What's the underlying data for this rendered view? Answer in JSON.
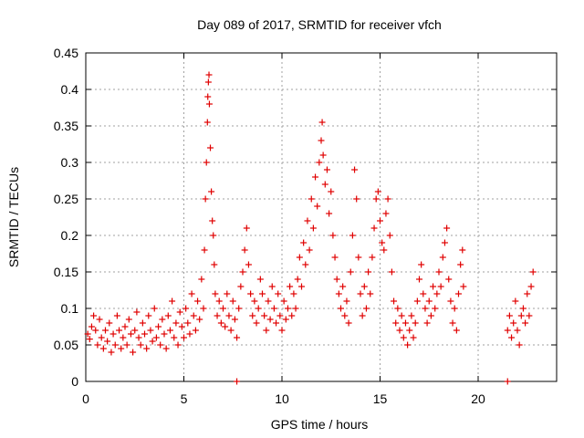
{
  "chart_data": {
    "type": "scatter",
    "title": "Day 089 of 2017, SRMTID for receiver vfch",
    "xlabel": "GPS time / hours",
    "ylabel": "SRMTID / TECUs",
    "xlim": [
      0,
      24
    ],
    "ylim": [
      0,
      0.45
    ],
    "xticks": [
      0,
      5,
      10,
      15,
      20
    ],
    "yticks": [
      0,
      0.05,
      0.1,
      0.15,
      0.2,
      0.25,
      0.3,
      0.35,
      0.4,
      0.45
    ],
    "xtick_labels": [
      "0",
      "5",
      "10",
      "15",
      "20"
    ],
    "ytick_labels": [
      "0",
      "0.05",
      "0.1",
      "0.15",
      "0.2",
      "0.25",
      "0.3",
      "0.35",
      "0.4",
      "0.45"
    ],
    "grid": true,
    "marker_color": "#e00000",
    "series": [
      {
        "name": "SRMTID",
        "points": [
          [
            0.1,
            0.065
          ],
          [
            0.2,
            0.058
          ],
          [
            0.3,
            0.075
          ],
          [
            0.4,
            0.09
          ],
          [
            0.5,
            0.07
          ],
          [
            0.6,
            0.05
          ],
          [
            0.7,
            0.085
          ],
          [
            0.8,
            0.06
          ],
          [
            0.9,
            0.045
          ],
          [
            1.0,
            0.07
          ],
          [
            1.1,
            0.055
          ],
          [
            1.2,
            0.08
          ],
          [
            1.3,
            0.04
          ],
          [
            1.4,
            0.065
          ],
          [
            1.5,
            0.05
          ],
          [
            1.6,
            0.09
          ],
          [
            1.7,
            0.07
          ],
          [
            1.8,
            0.045
          ],
          [
            1.9,
            0.06
          ],
          [
            2.0,
            0.075
          ],
          [
            2.1,
            0.05
          ],
          [
            2.2,
            0.085
          ],
          [
            2.3,
            0.065
          ],
          [
            2.4,
            0.04
          ],
          [
            2.5,
            0.07
          ],
          [
            2.6,
            0.095
          ],
          [
            2.7,
            0.06
          ],
          [
            2.8,
            0.05
          ],
          [
            2.9,
            0.08
          ],
          [
            3.0,
            0.065
          ],
          [
            3.1,
            0.045
          ],
          [
            3.2,
            0.09
          ],
          [
            3.3,
            0.07
          ],
          [
            3.4,
            0.055
          ],
          [
            3.5,
            0.1
          ],
          [
            3.6,
            0.06
          ],
          [
            3.7,
            0.075
          ],
          [
            3.8,
            0.05
          ],
          [
            3.9,
            0.085
          ],
          [
            4.0,
            0.065
          ],
          [
            4.1,
            0.045
          ],
          [
            4.2,
            0.09
          ],
          [
            4.3,
            0.07
          ],
          [
            4.4,
            0.11
          ],
          [
            4.5,
            0.06
          ],
          [
            4.6,
            0.08
          ],
          [
            4.7,
            0.05
          ],
          [
            4.8,
            0.095
          ],
          [
            4.9,
            0.075
          ],
          [
            5.0,
            0.06
          ],
          [
            5.1,
            0.1
          ],
          [
            5.2,
            0.08
          ],
          [
            5.3,
            0.065
          ],
          [
            5.4,
            0.12
          ],
          [
            5.5,
            0.09
          ],
          [
            5.6,
            0.07
          ],
          [
            5.7,
            0.11
          ],
          [
            5.8,
            0.085
          ],
          [
            5.9,
            0.14
          ],
          [
            6.0,
            0.1
          ],
          [
            6.05,
            0.18
          ],
          [
            6.1,
            0.25
          ],
          [
            6.15,
            0.3
          ],
          [
            6.2,
            0.355
          ],
          [
            6.22,
            0.39
          ],
          [
            6.25,
            0.41
          ],
          [
            6.28,
            0.42
          ],
          [
            6.3,
            0.38
          ],
          [
            6.35,
            0.32
          ],
          [
            6.4,
            0.26
          ],
          [
            6.45,
            0.22
          ],
          [
            6.5,
            0.2
          ],
          [
            6.55,
            0.16
          ],
          [
            6.6,
            0.12
          ],
          [
            6.7,
            0.09
          ],
          [
            6.8,
            0.11
          ],
          [
            6.9,
            0.08
          ],
          [
            7.0,
            0.1
          ],
          [
            7.1,
            0.075
          ],
          [
            7.2,
            0.12
          ],
          [
            7.3,
            0.09
          ],
          [
            7.4,
            0.07
          ],
          [
            7.5,
            0.11
          ],
          [
            7.6,
            0.085
          ],
          [
            7.7,
            0.06
          ],
          [
            7.8,
            0.1
          ],
          [
            7.9,
            0.13
          ],
          [
            8.0,
            0.15
          ],
          [
            8.1,
            0.18
          ],
          [
            8.2,
            0.21
          ],
          [
            8.3,
            0.16
          ],
          [
            8.4,
            0.12
          ],
          [
            8.5,
            0.09
          ],
          [
            8.6,
            0.11
          ],
          [
            8.7,
            0.08
          ],
          [
            8.8,
            0.1
          ],
          [
            8.9,
            0.14
          ],
          [
            9.0,
            0.12
          ],
          [
            9.1,
            0.09
          ],
          [
            9.2,
            0.07
          ],
          [
            9.3,
            0.11
          ],
          [
            9.4,
            0.085
          ],
          [
            9.5,
            0.13
          ],
          [
            9.6,
            0.1
          ],
          [
            9.7,
            0.08
          ],
          [
            9.8,
            0.12
          ],
          [
            9.9,
            0.09
          ],
          [
            10.0,
            0.07
          ],
          [
            10.1,
            0.11
          ],
          [
            10.2,
            0.085
          ],
          [
            10.3,
            0.1
          ],
          [
            10.4,
            0.13
          ],
          [
            10.5,
            0.09
          ],
          [
            10.6,
            0.12
          ],
          [
            10.7,
            0.1
          ],
          [
            10.8,
            0.14
          ],
          [
            10.9,
            0.17
          ],
          [
            11.0,
            0.13
          ],
          [
            11.1,
            0.19
          ],
          [
            11.2,
            0.16
          ],
          [
            11.3,
            0.22
          ],
          [
            11.4,
            0.18
          ],
          [
            11.5,
            0.25
          ],
          [
            11.6,
            0.21
          ],
          [
            11.7,
            0.28
          ],
          [
            11.8,
            0.24
          ],
          [
            11.9,
            0.3
          ],
          [
            12.0,
            0.33
          ],
          [
            12.05,
            0.355
          ],
          [
            12.1,
            0.31
          ],
          [
            12.2,
            0.27
          ],
          [
            12.3,
            0.29
          ],
          [
            12.4,
            0.23
          ],
          [
            12.5,
            0.26
          ],
          [
            12.6,
            0.2
          ],
          [
            12.7,
            0.17
          ],
          [
            12.8,
            0.14
          ],
          [
            12.9,
            0.12
          ],
          [
            13.0,
            0.1
          ],
          [
            13.1,
            0.13
          ],
          [
            13.2,
            0.09
          ],
          [
            13.3,
            0.11
          ],
          [
            13.4,
            0.08
          ],
          [
            13.5,
            0.15
          ],
          [
            13.6,
            0.2
          ],
          [
            13.7,
            0.29
          ],
          [
            13.8,
            0.25
          ],
          [
            13.9,
            0.17
          ],
          [
            14.0,
            0.12
          ],
          [
            14.1,
            0.09
          ],
          [
            14.2,
            0.13
          ],
          [
            14.3,
            0.1
          ],
          [
            14.4,
            0.15
          ],
          [
            14.5,
            0.12
          ],
          [
            14.6,
            0.17
          ],
          [
            14.7,
            0.21
          ],
          [
            14.8,
            0.25
          ],
          [
            14.9,
            0.26
          ],
          [
            15.0,
            0.22
          ],
          [
            15.1,
            0.19
          ],
          [
            15.2,
            0.18
          ],
          [
            15.3,
            0.23
          ],
          [
            15.4,
            0.25
          ],
          [
            15.5,
            0.2
          ],
          [
            15.6,
            0.15
          ],
          [
            15.7,
            0.11
          ],
          [
            15.8,
            0.08
          ],
          [
            15.9,
            0.1
          ],
          [
            16.0,
            0.07
          ],
          [
            16.1,
            0.09
          ],
          [
            16.2,
            0.06
          ],
          [
            16.3,
            0.08
          ],
          [
            16.4,
            0.05
          ],
          [
            16.5,
            0.07
          ],
          [
            16.6,
            0.09
          ],
          [
            16.7,
            0.06
          ],
          [
            16.8,
            0.08
          ],
          [
            16.9,
            0.11
          ],
          [
            17.0,
            0.14
          ],
          [
            17.1,
            0.16
          ],
          [
            17.2,
            0.12
          ],
          [
            17.3,
            0.1
          ],
          [
            17.4,
            0.08
          ],
          [
            17.5,
            0.11
          ],
          [
            17.6,
            0.09
          ],
          [
            17.7,
            0.13
          ],
          [
            17.8,
            0.1
          ],
          [
            17.9,
            0.12
          ],
          [
            18.0,
            0.15
          ],
          [
            18.1,
            0.13
          ],
          [
            18.2,
            0.17
          ],
          [
            18.3,
            0.19
          ],
          [
            18.4,
            0.21
          ],
          [
            18.5,
            0.14
          ],
          [
            18.6,
            0.11
          ],
          [
            18.7,
            0.08
          ],
          [
            18.8,
            0.1
          ],
          [
            18.9,
            0.07
          ],
          [
            19.0,
            0.12
          ],
          [
            19.1,
            0.16
          ],
          [
            19.2,
            0.18
          ],
          [
            19.25,
            0.13
          ],
          [
            21.5,
            0.07
          ],
          [
            21.6,
            0.09
          ],
          [
            21.7,
            0.06
          ],
          [
            21.8,
            0.08
          ],
          [
            21.9,
            0.11
          ],
          [
            22.0,
            0.07
          ],
          [
            22.1,
            0.05
          ],
          [
            22.2,
            0.09
          ],
          [
            22.3,
            0.1
          ],
          [
            22.4,
            0.08
          ],
          [
            22.5,
            0.12
          ],
          [
            22.6,
            0.09
          ],
          [
            22.7,
            0.13
          ],
          [
            22.8,
            0.15
          ],
          [
            7.7,
            0.0
          ],
          [
            21.5,
            0.0
          ]
        ]
      }
    ]
  }
}
